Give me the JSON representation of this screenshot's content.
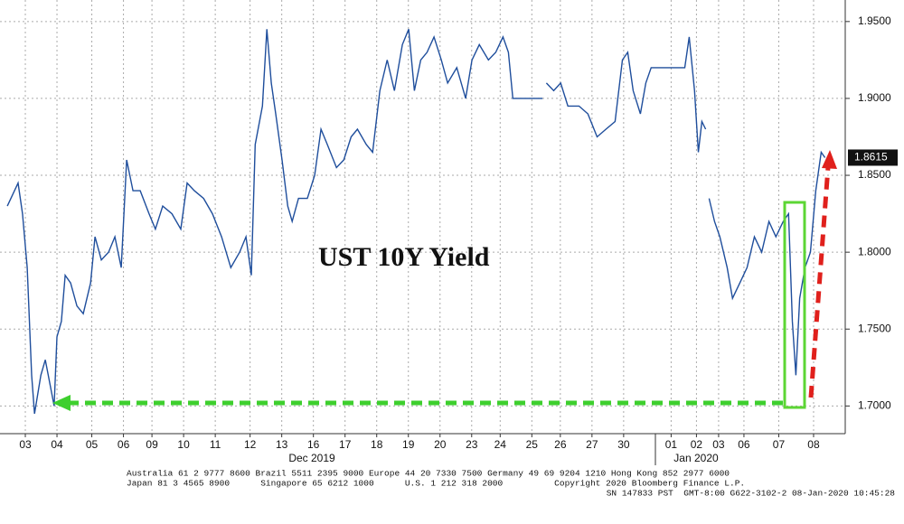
{
  "chart_data": {
    "type": "line",
    "title": "UST 10Y Yield",
    "color": "#1f4e9c",
    "x": [
      -0.57,
      -0.23,
      -0.09,
      0.06,
      0.2,
      0.29,
      0.49,
      0.63,
      0.77,
      0.91,
      1.0,
      1.14,
      1.26,
      1.43,
      1.63,
      1.83,
      2.06,
      2.2,
      2.4,
      2.63,
      2.83,
      3.03,
      3.2,
      3.4,
      3.63,
      3.91,
      4.11,
      4.34,
      4.63,
      4.91,
      5.11,
      5.34,
      5.63,
      5.91,
      6.2,
      6.49,
      6.77,
      6.97,
      7.14,
      7.26,
      7.49,
      7.63,
      7.77,
      7.91,
      8.11,
      8.29,
      8.43,
      8.63,
      8.91,
      9.14,
      9.34,
      9.54,
      9.83,
      10.06,
      10.29,
      10.49,
      10.77,
      10.97,
      11.2,
      11.43,
      11.66,
      11.91,
      12.11,
      12.29,
      12.49,
      12.69,
      12.91,
      13.14,
      13.34,
      13.63,
      13.91,
      14.11,
      14.34,
      14.63,
      14.86,
      15.09,
      15.26,
      15.4,
      16.34,
      16.4,
      16.46,
      16.69,
      16.91,
      17.14,
      17.49,
      17.77,
      18.06,
      18.34,
      18.63,
      18.86,
      19.03,
      19.2,
      19.43,
      19.6,
      19.77,
      20.83,
      20.97,
      21.14,
      21.26,
      21.37,
      21.49,
      21.55,
      21.6,
      21.77,
      21.94,
      22.17,
      22.34,
      22.57,
      22.8,
      23.03,
      23.26,
      23.49,
      23.71,
      23.94,
      24.11,
      24.23,
      24.34,
      24.46,
      24.63,
      24.8,
      24.97,
      25.14,
      25.26
    ],
    "values": [
      1.83,
      1.845,
      1.825,
      1.79,
      1.72,
      1.695,
      1.72,
      1.73,
      1.715,
      1.7,
      1.745,
      1.755,
      1.785,
      1.78,
      1.765,
      1.76,
      1.78,
      1.81,
      1.795,
      1.8,
      1.81,
      1.79,
      1.86,
      1.84,
      1.84,
      1.825,
      1.815,
      1.83,
      1.825,
      1.815,
      1.845,
      1.84,
      1.835,
      1.825,
      1.81,
      1.79,
      1.8,
      1.81,
      1.785,
      1.87,
      1.895,
      1.945,
      1.91,
      1.89,
      1.86,
      1.83,
      1.82,
      1.835,
      1.835,
      1.85,
      1.88,
      1.87,
      1.855,
      1.86,
      1.875,
      1.88,
      1.87,
      1.865,
      1.905,
      1.925,
      1.905,
      1.935,
      1.945,
      1.905,
      1.925,
      1.93,
      1.94,
      1.925,
      1.91,
      1.92,
      1.9,
      1.925,
      1.935,
      1.925,
      1.93,
      1.94,
      1.93,
      1.9,
      1.9,
      null,
      1.91,
      1.905,
      1.91,
      1.895,
      1.895,
      1.89,
      1.875,
      1.88,
      1.885,
      1.925,
      1.93,
      1.905,
      1.89,
      1.91,
      1.92,
      1.92,
      1.94,
      1.905,
      1.865,
      1.885,
      1.88,
      null,
      1.835,
      1.82,
      1.81,
      1.79,
      1.77,
      1.78,
      1.79,
      1.81,
      1.8,
      1.82,
      1.81,
      1.82,
      1.825,
      1.755,
      1.72,
      1.77,
      1.79,
      1.8,
      1.84,
      1.865,
      1.8615
    ],
    "xlim": [
      -0.8,
      25.9
    ],
    "xticks": [
      {
        "value": 0,
        "label": "03"
      },
      {
        "value": 1,
        "label": "04"
      },
      {
        "value": 2.1,
        "label": "05"
      },
      {
        "value": 3.1,
        "label": "06"
      },
      {
        "value": 4,
        "label": "09"
      },
      {
        "value": 5,
        "label": "10"
      },
      {
        "value": 6,
        "label": "11"
      },
      {
        "value": 7.1,
        "label": "12"
      },
      {
        "value": 8.1,
        "label": "13"
      },
      {
        "value": 9.1,
        "label": "16"
      },
      {
        "value": 10.1,
        "label": "17"
      },
      {
        "value": 11.1,
        "label": "18"
      },
      {
        "value": 12.1,
        "label": "19"
      },
      {
        "value": 13.1,
        "label": "20"
      },
      {
        "value": 14.1,
        "label": "23"
      },
      {
        "value": 15,
        "label": "24"
      },
      {
        "value": 16,
        "label": "25"
      },
      {
        "value": 16.9,
        "label": "26"
      },
      {
        "value": 17.9,
        "label": "27"
      },
      {
        "value": 18.9,
        "label": "30"
      },
      {
        "value": 20.4,
        "label": "01"
      },
      {
        "value": 21.2,
        "label": "02"
      },
      {
        "value": 21.9,
        "label": "03"
      },
      {
        "value": 22.7,
        "label": "06"
      },
      {
        "value": 23.8,
        "label": "07"
      },
      {
        "value": 24.9,
        "label": "08"
      }
    ],
    "ylim": [
      1.682,
      1.964
    ],
    "yticks": [
      {
        "value": 1.7,
        "label": "1.7000"
      },
      {
        "value": 1.75,
        "label": "1.7500"
      },
      {
        "value": 1.8,
        "label": "1.8000"
      },
      {
        "value": 1.85,
        "label": "1.8500"
      },
      {
        "value": 1.9,
        "label": "1.9000"
      },
      {
        "value": 1.95,
        "label": "1.9500"
      }
    ],
    "grid": true,
    "last_value": 1.8615,
    "months": [
      "Dec 2019",
      "Jan 2020"
    ],
    "footer": [
      "Australia 61 2 9777 8600 Brazil 5511 2395 9000 Europe 44 20 7330 7500 Germany 49 69 9204 1210 Hong Kong 852 2977 6000",
      "Japan 81 3 4565 8900      Singapore 65 6212 1000      U.S. 1 212 318 2000          Copyright 2020 Bloomberg Finance L.P.",
      "SN 147833 PST  GMT-8:00 G622-3102-2 08-Jan-2020 10:45:28"
    ]
  }
}
